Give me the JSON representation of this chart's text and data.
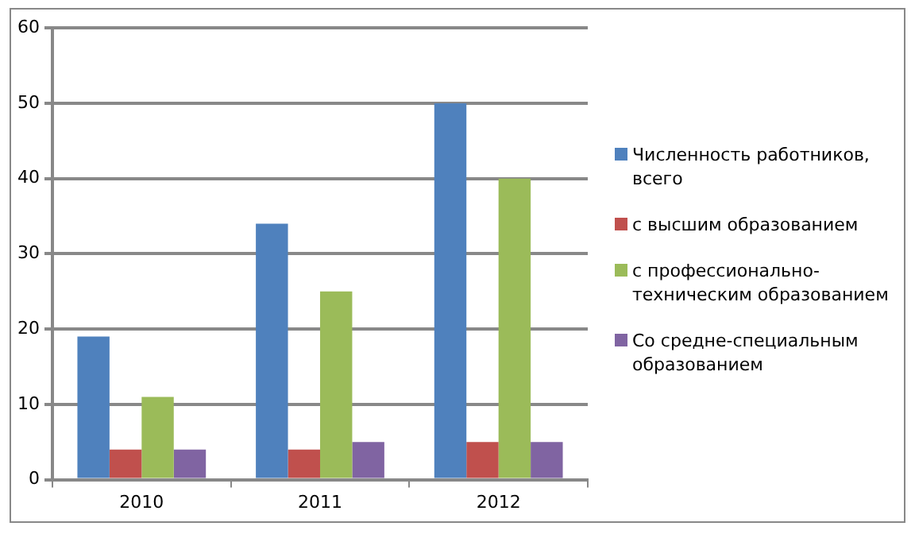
{
  "chart_data": {
    "type": "bar",
    "categories": [
      "2010",
      "2011",
      "2012"
    ],
    "series": [
      {
        "name": "Численность работников, всего",
        "color": "#4f81bd",
        "values": [
          19,
          34,
          50
        ]
      },
      {
        "name": "с высшим образованием",
        "color": "#c0504d",
        "values": [
          4,
          4,
          5
        ]
      },
      {
        "name": "с профессионально-техническим образованием",
        "color": "#9bbb59",
        "values": [
          11,
          25,
          40
        ]
      },
      {
        "name": "Со средне-специальным образованием",
        "color": "#8064a2",
        "values": [
          4,
          5,
          5
        ]
      }
    ],
    "ylim": [
      0,
      60
    ],
    "yticks": [
      0,
      10,
      20,
      30,
      40,
      50,
      60
    ],
    "grid": "y",
    "legend": "right"
  }
}
